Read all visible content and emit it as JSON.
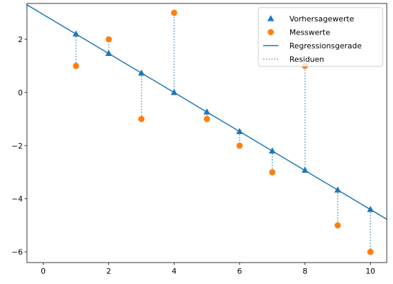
{
  "chart_data": {
    "type": "scatter",
    "title": "",
    "xlabel": "",
    "ylabel": "",
    "xlim": [
      -0.5,
      10.5
    ],
    "ylim": [
      -6.4,
      3.35
    ],
    "xticks": [
      0,
      2,
      4,
      6,
      8,
      10
    ],
    "yticks": [
      -6,
      -4,
      -2,
      0,
      2
    ],
    "xtick_labels": [
      "0",
      "2",
      "4",
      "6",
      "8",
      "10"
    ],
    "ytick_labels": [
      "−6",
      "−4",
      "−2",
      "0",
      "2"
    ],
    "grid": false,
    "legend_position": "top-right",
    "series": [
      {
        "name": "Vorhersagewerte",
        "kind": "scatter",
        "marker": "triangle",
        "color": "#1f77b4",
        "x": [
          1,
          2,
          3,
          4,
          5,
          6,
          7,
          8,
          9,
          10
        ],
        "y": [
          2.2,
          1.47,
          0.73,
          0.0,
          -0.73,
          -1.47,
          -2.2,
          -2.93,
          -3.67,
          -4.4
        ]
      },
      {
        "name": "Messwerte",
        "kind": "scatter",
        "marker": "circle",
        "color": "#ff7f0e",
        "x": [
          1,
          2,
          3,
          4,
          5,
          6,
          7,
          8,
          9,
          10
        ],
        "y": [
          1,
          2,
          -1,
          3,
          -1,
          -2,
          -3,
          1,
          -5,
          -6
        ]
      },
      {
        "name": "Regressionsgerade",
        "kind": "line",
        "style": "solid",
        "color": "#1f77b4",
        "x": [
          -0.5,
          10.5
        ],
        "y": [
          3.3,
          -4.77
        ]
      },
      {
        "name": "Residuen",
        "kind": "segments",
        "style": "dotted",
        "color": "#1f77b4",
        "x": [
          1,
          2,
          3,
          4,
          5,
          6,
          7,
          8,
          9,
          10
        ]
      }
    ]
  }
}
